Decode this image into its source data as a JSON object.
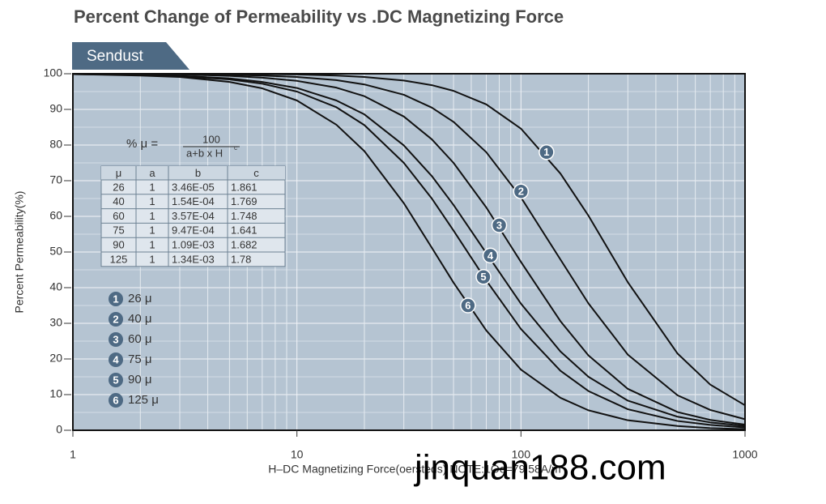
{
  "chart_data": {
    "type": "line",
    "title": "Percent Change of Permeability vs .DC Magnetizing Force",
    "tab": "Sendust",
    "x_label": "H–DC Magnetizing Force(oersteds) NOTE:1Oe=79.58A/m",
    "y_label": "Percent Permeability(%)",
    "xscale": "log",
    "xlim": [
      1,
      1000
    ],
    "xticks": [
      1,
      10,
      100,
      1000
    ],
    "ylim": [
      0,
      100
    ],
    "yticks": [
      0,
      10,
      20,
      30,
      40,
      50,
      60,
      70,
      80,
      90,
      100
    ],
    "grid": true,
    "minor_grid": true,
    "x": [
      1,
      2,
      3,
      5,
      7,
      10,
      15,
      20,
      30,
      40,
      50,
      70,
      100,
      150,
      200,
      300,
      500,
      700,
      1000
    ],
    "series": [
      {
        "name": "26 μ",
        "color": "#111111",
        "marker_label": "1",
        "marker_x": 130,
        "marker_y": 78,
        "values": [
          100,
          100,
          100,
          99.9,
          99.9,
          99.8,
          99.5,
          99.1,
          98.1,
          96.8,
          95.2,
          91.4,
          84.6,
          72.0,
          60.2,
          41.5,
          21.5,
          12.8,
          7.0
        ]
      },
      {
        "name": "40 μ",
        "color": "#111111",
        "marker_label": "2",
        "marker_x": 100,
        "marker_y": 67,
        "values": [
          100,
          100,
          99.9,
          99.7,
          99.5,
          99.1,
          98.2,
          97.0,
          94.1,
          90.5,
          86.5,
          78.0,
          65.3,
          47.9,
          35.6,
          21.2,
          9.8,
          5.7,
          3.1
        ]
      },
      {
        "name": "60 μ",
        "color": "#111111",
        "marker_label": "3",
        "marker_x": 80,
        "marker_y": 57.5,
        "values": [
          100,
          99.9,
          99.8,
          99.4,
          98.9,
          98.0,
          96.1,
          93.7,
          88.0,
          81.6,
          75.0,
          62.5,
          47.2,
          30.6,
          21.0,
          11.6,
          5.1,
          2.9,
          1.6
        ]
      },
      {
        "name": "75 μ",
        "color": "#111111",
        "marker_label": "4",
        "marker_x": 73,
        "marker_y": 49,
        "values": [
          99.9,
          99.7,
          99.4,
          98.7,
          97.7,
          96.0,
          92.5,
          88.6,
          79.9,
          71.3,
          63.2,
          49.7,
          35.5,
          22.1,
          15.0,
          8.3,
          3.8,
          2.2,
          1.2
        ]
      },
      {
        "name": "90 μ",
        "color": "#111111",
        "marker_label": "5",
        "marker_x": 68,
        "marker_y": 43,
        "values": [
          99.9,
          99.7,
          99.3,
          98.4,
          97.2,
          95.0,
          90.6,
          85.6,
          75.0,
          65.0,
          56.0,
          42.0,
          28.4,
          16.7,
          11.0,
          5.9,
          2.6,
          1.5,
          0.8
        ]
      },
      {
        "name": "125 μ",
        "color": "#111111",
        "marker_label": "6",
        "marker_x": 58,
        "marker_y": 35,
        "values": [
          99.9,
          99.5,
          99.1,
          97.7,
          95.9,
          92.5,
          85.7,
          78.3,
          63.7,
          51.2,
          41.4,
          28.0,
          17.0,
          9.1,
          5.6,
          2.8,
          1.2,
          0.6,
          0.3
        ]
      }
    ],
    "formula": {
      "lhs": "% μ =",
      "numerator": "100",
      "denominator": "a+b x H",
      "exponent": "c"
    },
    "table": {
      "columns": [
        "μ",
        "a",
        "b",
        "c"
      ],
      "rows": [
        [
          "26",
          "1",
          "3.46E-05",
          "1.861"
        ],
        [
          "40",
          "1",
          "1.54E-04",
          "1.769"
        ],
        [
          "60",
          "1",
          "3.57E-04",
          "1.748"
        ],
        [
          "75",
          "1",
          "9.47E-04",
          "1.641"
        ],
        [
          "90",
          "1",
          "1.09E-03",
          "1.682"
        ],
        [
          "125",
          "1",
          "1.34E-03",
          "1.78"
        ]
      ]
    }
  },
  "watermark": "jinquan188.com"
}
